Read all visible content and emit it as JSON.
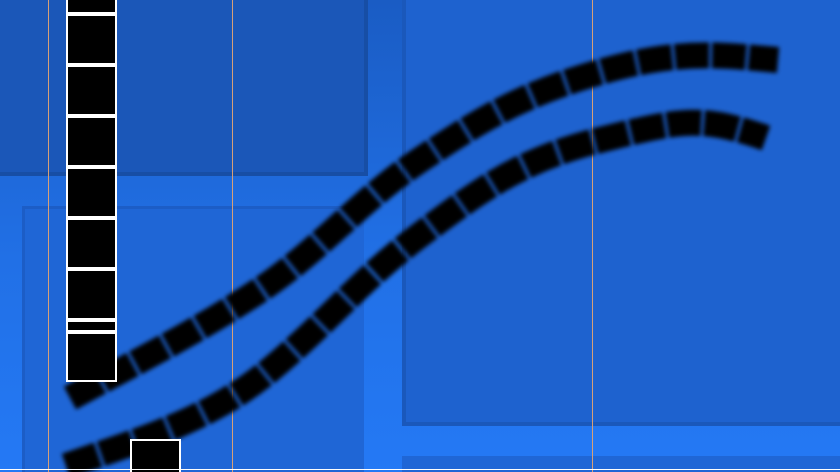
{
  "level": {
    "background_color": "#2170e6",
    "line_color": "#ffffff",
    "guide_color": "#d6a078",
    "block_fill": "#000000",
    "block_outline": "#ffffff",
    "wave_trail_color": "#000000"
  }
}
